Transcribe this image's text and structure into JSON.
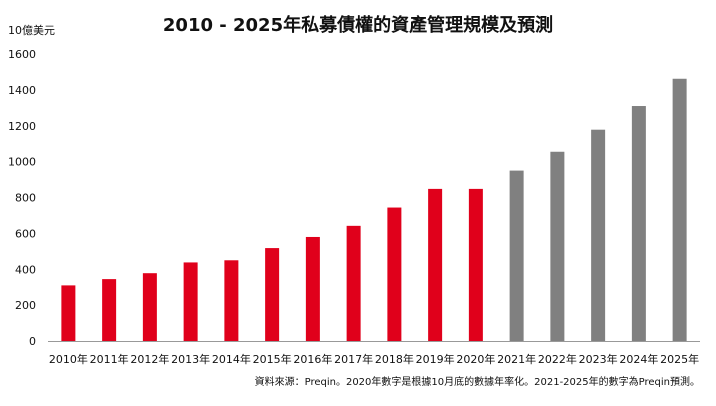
{
  "chart_data": {
    "type": "bar",
    "title": "2010 - 2025年私募債權的資產管理規模及預測",
    "unit_label": "10億美元",
    "source": "資料來源：Preqin。2020年數字是根據10月底的數據年率化。2021-2025年的數字為Preqin預測。",
    "ylim": [
      0,
      1600
    ],
    "yticks": [
      0,
      200,
      400,
      600,
      800,
      1000,
      1200,
      1400,
      1600
    ],
    "grid": false,
    "categories": [
      "2010年",
      "2011年",
      "2012年",
      "2013年",
      "2014年",
      "2015年",
      "2016年",
      "2017年",
      "2018年",
      "2019年",
      "2020年",
      "2021年",
      "2022年",
      "2023年",
      "2024年",
      "2025年"
    ],
    "values": [
      310,
      345,
      378,
      438,
      450,
      518,
      580,
      642,
      744,
      848,
      848,
      950,
      1055,
      1178,
      1310,
      1462
    ],
    "bar_colors": [
      "#e0001b",
      "#e0001b",
      "#e0001b",
      "#e0001b",
      "#e0001b",
      "#e0001b",
      "#e0001b",
      "#e0001b",
      "#e0001b",
      "#e0001b",
      "#e0001b",
      "#808080",
      "#808080",
      "#808080",
      "#808080",
      "#808080"
    ]
  }
}
